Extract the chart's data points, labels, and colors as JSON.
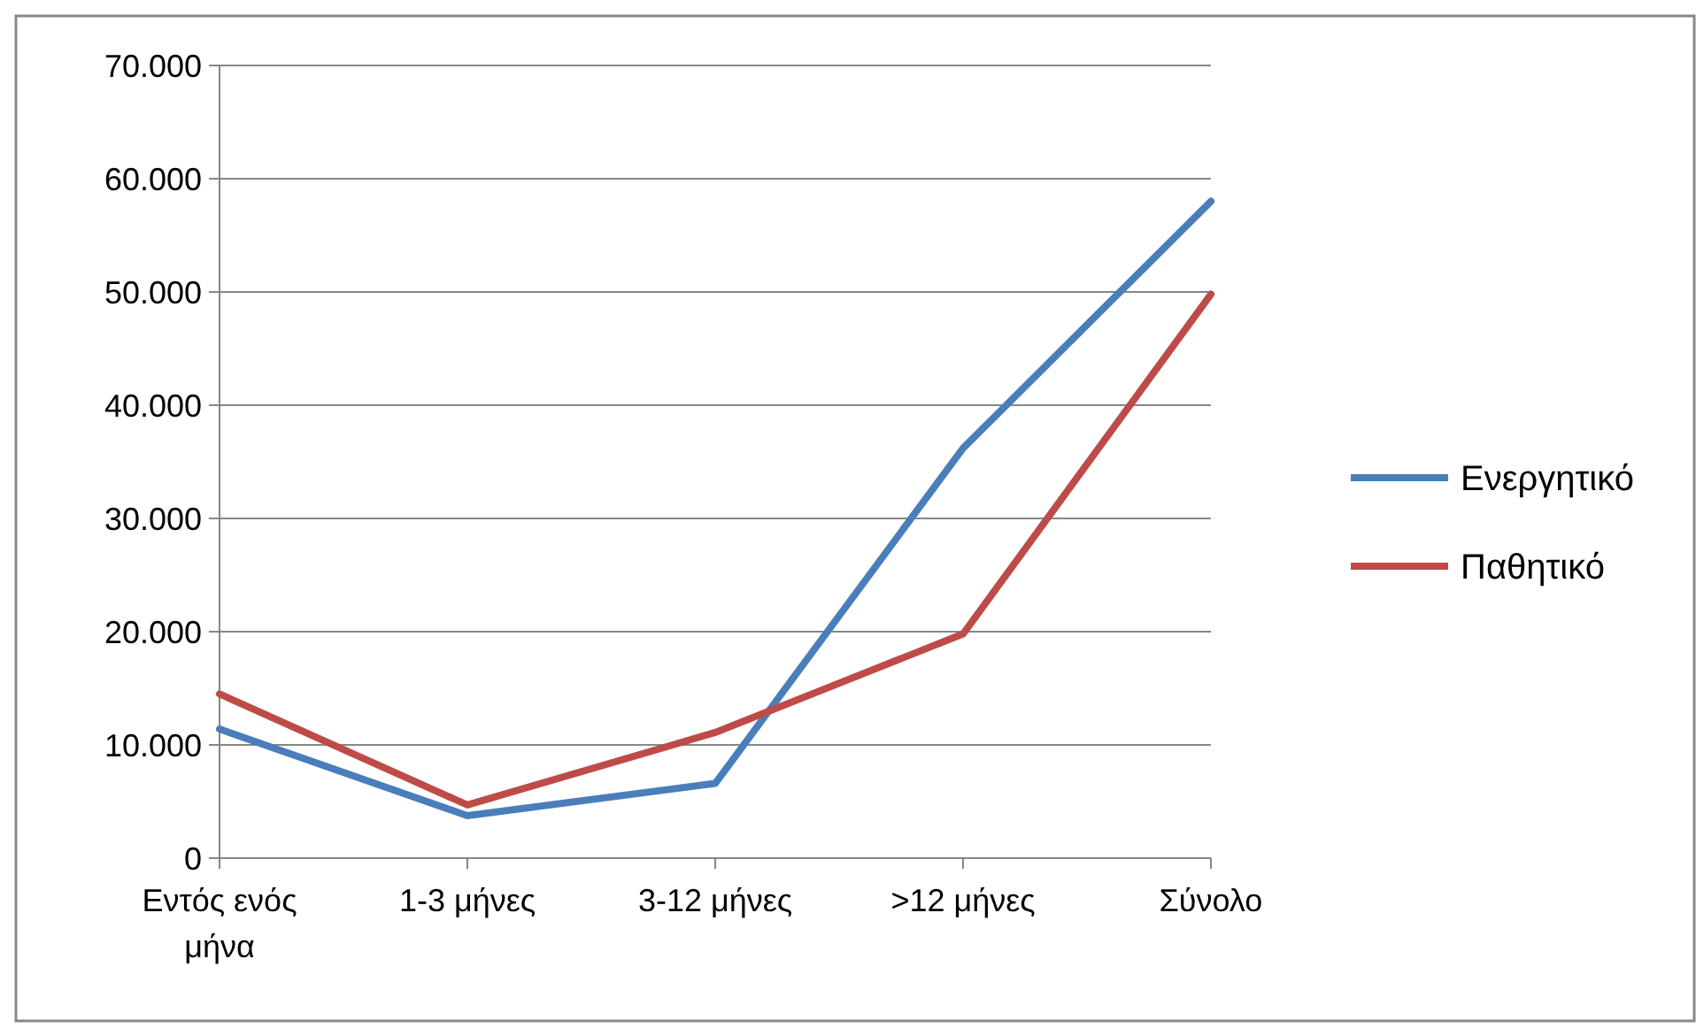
{
  "chart_data": {
    "type": "line",
    "categories": [
      "Εντός ενός μήνα",
      "1-3 μήνες",
      "3-12 μήνες",
      ">12 μήνες",
      "Σύνολο"
    ],
    "series": [
      {
        "name": "Ενεργητικό",
        "color": "#4a7ebb",
        "values": [
          11400,
          3750,
          6600,
          36200,
          58000
        ]
      },
      {
        "name": "Παθητικό",
        "color": "#be4b48",
        "values": [
          14500,
          4700,
          11100,
          19800,
          49800
        ]
      }
    ],
    "ylim": [
      0,
      70000
    ],
    "yticks": [
      {
        "value": 0,
        "label": "0"
      },
      {
        "value": 10000,
        "label": "10.000"
      },
      {
        "value": 20000,
        "label": "20.000"
      },
      {
        "value": 30000,
        "label": "30.000"
      },
      {
        "value": 40000,
        "label": "40.000"
      },
      {
        "value": 50000,
        "label": "50.000"
      },
      {
        "value": 60000,
        "label": "60.000"
      },
      {
        "value": 70000,
        "label": "70.000"
      }
    ],
    "grid": "y",
    "legend": "right",
    "marker": "none",
    "line_style": "solid"
  }
}
